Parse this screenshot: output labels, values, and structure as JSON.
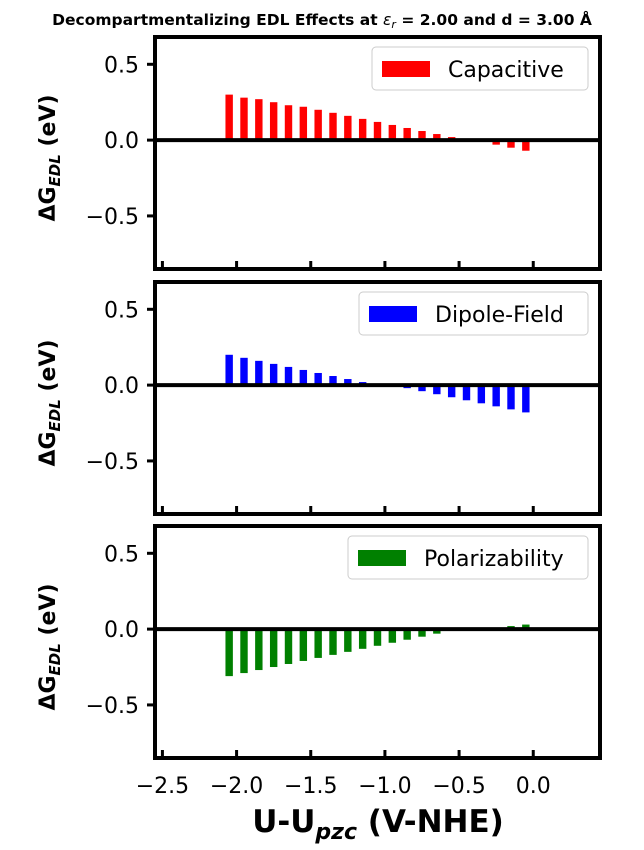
{
  "figure": {
    "title": "Decompartmentalizing EDL Effects at εᵣ = 2.00 and d = 3.00 Å",
    "title_parts": {
      "before": "Decompartmentalizing EDL Effects at ",
      "symbol": "ε",
      "subscript": "r",
      "after": " = 2.00 and d = 3.00 Å"
    },
    "xlabel": "U-U_pzc (V-NHE)",
    "xlabel_parts": {
      "main": "U-U",
      "sub": "pzc",
      "rest": " (V-NHE)"
    },
    "ylabel": "ΔG_EDL (eV)",
    "ylabel_parts": {
      "main": "ΔG",
      "sub": "EDL",
      "rest": " (eV)"
    }
  },
  "chart_data": [
    {
      "type": "bar",
      "legend": "Capacitive",
      "color": "#ff0000",
      "legend_position": "top-right",
      "xlim": [
        -2.55,
        0.45
      ],
      "ylim": [
        -0.85,
        0.68
      ],
      "xticks": [
        -2.5,
        -2.0,
        -1.5,
        -1.0,
        -0.5,
        0.0
      ],
      "yticks": [
        0.5,
        0.0,
        -0.5
      ],
      "ytick_labels": [
        "0.5",
        "0.0",
        "−0.5"
      ],
      "x": [
        -2.05,
        -1.95,
        -1.85,
        -1.75,
        -1.65,
        -1.55,
        -1.45,
        -1.35,
        -1.25,
        -1.15,
        -1.05,
        -0.95,
        -0.85,
        -0.75,
        -0.65,
        -0.55,
        -0.45,
        -0.35,
        -0.25,
        -0.15,
        -0.05
      ],
      "values": [
        0.3,
        0.28,
        0.27,
        0.25,
        0.23,
        0.22,
        0.2,
        0.18,
        0.16,
        0.14,
        0.12,
        0.1,
        0.08,
        0.06,
        0.04,
        0.02,
        0.0,
        -0.01,
        -0.03,
        -0.05,
        -0.07
      ]
    },
    {
      "type": "bar",
      "legend": "Dipole-Field",
      "color": "#0000ff",
      "legend_position": "top-right",
      "xlim": [
        -2.55,
        0.45
      ],
      "ylim": [
        -0.85,
        0.68
      ],
      "xticks": [
        -2.5,
        -2.0,
        -1.5,
        -1.0,
        -0.5,
        0.0
      ],
      "yticks": [
        0.5,
        0.0,
        -0.5
      ],
      "ytick_labels": [
        "0.5",
        "0.0",
        "−0.5"
      ],
      "x": [
        -2.05,
        -1.95,
        -1.85,
        -1.75,
        -1.65,
        -1.55,
        -1.45,
        -1.35,
        -1.25,
        -1.15,
        -1.05,
        -0.95,
        -0.85,
        -0.75,
        -0.65,
        -0.55,
        -0.45,
        -0.35,
        -0.25,
        -0.15,
        -0.05
      ],
      "values": [
        0.2,
        0.18,
        0.16,
        0.14,
        0.12,
        0.1,
        0.08,
        0.06,
        0.04,
        0.02,
        0.01,
        0.0,
        -0.02,
        -0.04,
        -0.06,
        -0.08,
        -0.1,
        -0.12,
        -0.14,
        -0.16,
        -0.18
      ]
    },
    {
      "type": "bar",
      "legend": "Polarizability",
      "color": "#008000",
      "legend_position": "top-right",
      "xlim": [
        -2.55,
        0.45
      ],
      "ylim": [
        -0.85,
        0.68
      ],
      "xticks": [
        -2.5,
        -2.0,
        -1.5,
        -1.0,
        -0.5,
        0.0
      ],
      "xtick_labels": [
        "−2.5",
        "−2.0",
        "−1.5",
        "−1.0",
        "−0.5",
        "0.0"
      ],
      "yticks": [
        0.5,
        0.0,
        -0.5
      ],
      "ytick_labels": [
        "0.5",
        "0.0",
        "−0.5"
      ],
      "x": [
        -2.05,
        -1.95,
        -1.85,
        -1.75,
        -1.65,
        -1.55,
        -1.45,
        -1.35,
        -1.25,
        -1.15,
        -1.05,
        -0.95,
        -0.85,
        -0.75,
        -0.65,
        -0.55,
        -0.45,
        -0.35,
        -0.25,
        -0.15,
        -0.05
      ],
      "values": [
        -0.31,
        -0.29,
        -0.27,
        -0.25,
        -0.23,
        -0.21,
        -0.19,
        -0.17,
        -0.15,
        -0.13,
        -0.11,
        -0.09,
        -0.07,
        -0.05,
        -0.03,
        -0.01,
        0.0,
        0.0,
        0.01,
        0.02,
        0.03
      ]
    }
  ]
}
